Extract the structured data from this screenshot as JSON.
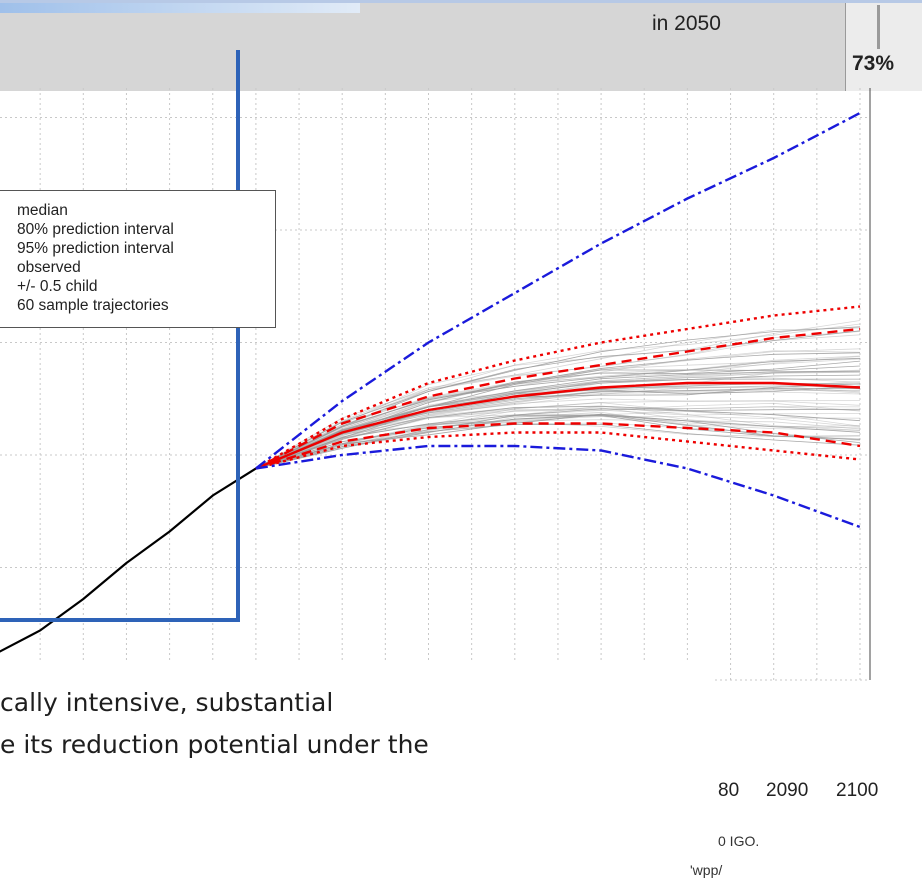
{
  "header": {
    "in_2050": "in 2050",
    "percent": "73%"
  },
  "legend": {
    "median": "median",
    "pi80": "80% prediction interval",
    "pi95": "95% prediction interval",
    "observed": "observed",
    "half_child": "+/- 0.5 child",
    "samples": "60 sample trajectories"
  },
  "caption": {
    "line1": "cally intensive, substantial",
    "line2": "e its reduction potential under the"
  },
  "source": {
    "line1": "0 IGO.",
    "line2": "'wpp/"
  },
  "colors": {
    "observed": "#000000",
    "median": "#ee0000",
    "interval": "#ee0000",
    "half_child": "#1a1adb",
    "samples": "#9a9a9a",
    "grid": "#c8c8c8",
    "frame": "#2e63b8"
  },
  "chart_data": {
    "type": "line",
    "title": "",
    "xlabel": "",
    "ylabel": "",
    "x_ticks": [
      "80",
      "2090",
      "2100"
    ],
    "xlim": [
      2000,
      2102
    ],
    "grid": true,
    "legend_position": "top-left",
    "observed": {
      "name": "observed",
      "x": [
        2000,
        2005,
        2010,
        2015,
        2020,
        2025,
        2030
      ],
      "y": [
        0.06,
        0.11,
        0.18,
        0.26,
        0.33,
        0.41,
        0.47
      ]
    },
    "projection_x": [
      2030,
      2040,
      2050,
      2060,
      2070,
      2080,
      2090,
      2100
    ],
    "series": [
      {
        "name": "median",
        "style": "solid",
        "values": [
          0.47,
          0.55,
          0.6,
          0.63,
          0.65,
          0.66,
          0.66,
          0.65
        ]
      },
      {
        "name": "80% prediction interval",
        "style": "dashed",
        "values": [
          0.47,
          0.57,
          0.63,
          0.67,
          0.7,
          0.73,
          0.76,
          0.78
        ]
      },
      {
        "name": "80% prediction interval",
        "style": "dashed",
        "values": [
          0.47,
          0.53,
          0.56,
          0.57,
          0.57,
          0.56,
          0.55,
          0.52
        ]
      },
      {
        "name": "95% prediction interval",
        "style": "dotted",
        "values": [
          0.47,
          0.58,
          0.66,
          0.71,
          0.75,
          0.78,
          0.81,
          0.83
        ]
      },
      {
        "name": "95% prediction interval",
        "style": "dotted",
        "values": [
          0.47,
          0.52,
          0.54,
          0.55,
          0.55,
          0.53,
          0.51,
          0.49
        ]
      },
      {
        "name": "+/- 0.5 child",
        "style": "dotdash",
        "values": [
          0.47,
          0.62,
          0.75,
          0.86,
          0.97,
          1.07,
          1.16,
          1.26
        ]
      },
      {
        "name": "+/- 0.5 child",
        "style": "dotdash",
        "values": [
          0.47,
          0.5,
          0.52,
          0.52,
          0.51,
          0.47,
          0.41,
          0.34
        ]
      }
    ],
    "sample_trajectories": {
      "name": "60 sample trajectories",
      "count": 60,
      "x": [
        2030,
        2040,
        2050,
        2060,
        2070,
        2080,
        2090,
        2100
      ]
    }
  }
}
